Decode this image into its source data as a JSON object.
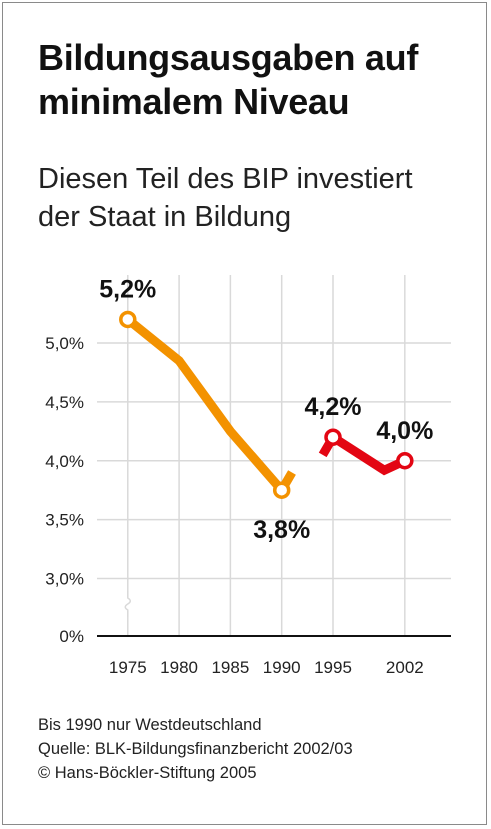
{
  "title_line1": "Bildungsausgaben auf",
  "title_line2": "minimalem Niveau",
  "subtitle_line1": "Diesen Teil des BIP investiert",
  "subtitle_line2": "der Staat in Bildung",
  "footer": {
    "note": "Bis 1990 nur Westdeutschland",
    "source": "Quelle: BLK-Bildungsfinanzbericht 2002/03",
    "copyright": "© Hans-Böckler-Stiftung 2005"
  },
  "colors": {
    "west": "#f39200",
    "unified": "#e30613",
    "grid": "#d9d9d9",
    "axis": "#111111"
  },
  "chart_data": {
    "type": "line",
    "title": "Bildungsausgaben auf minimalem Niveau",
    "subtitle": "Diesen Teil des BIP investiert der Staat in Bildung",
    "x": [
      1975,
      1980,
      1985,
      1990,
      1995,
      2000,
      2002
    ],
    "x_tick_labels": [
      "1975",
      "1980",
      "1985",
      "1990",
      "1995",
      "2002"
    ],
    "y_tick_labels": [
      "0%",
      "3,0%",
      "3,5%",
      "4,0%",
      "4,5%",
      "5,0%"
    ],
    "ylim": [
      3.0,
      5.3
    ],
    "y_axis_break": true,
    "grid": true,
    "series": [
      {
        "x": [
          1975,
          1980,
          1985,
          1990,
          1991
        ],
        "values": [
          5.2,
          4.85,
          4.25,
          3.75,
          3.9
        ]
      },
      {
        "x": [
          1994,
          1995,
          2000,
          2002
        ],
        "values": [
          4.05,
          4.2,
          3.92,
          4.0
        ]
      }
    ],
    "annotations": [
      {
        "x": 1975,
        "y": 5.2,
        "label": "5,2%",
        "position": "above"
      },
      {
        "x": 1990,
        "y": 3.75,
        "label": "3,8%",
        "position": "below"
      },
      {
        "x": 1995,
        "y": 4.2,
        "label": "4,2%",
        "position": "above"
      },
      {
        "x": 2002,
        "y": 4.0,
        "label": "4,0%",
        "position": "above"
      }
    ],
    "note": "Bis 1990 nur Westdeutschland"
  }
}
